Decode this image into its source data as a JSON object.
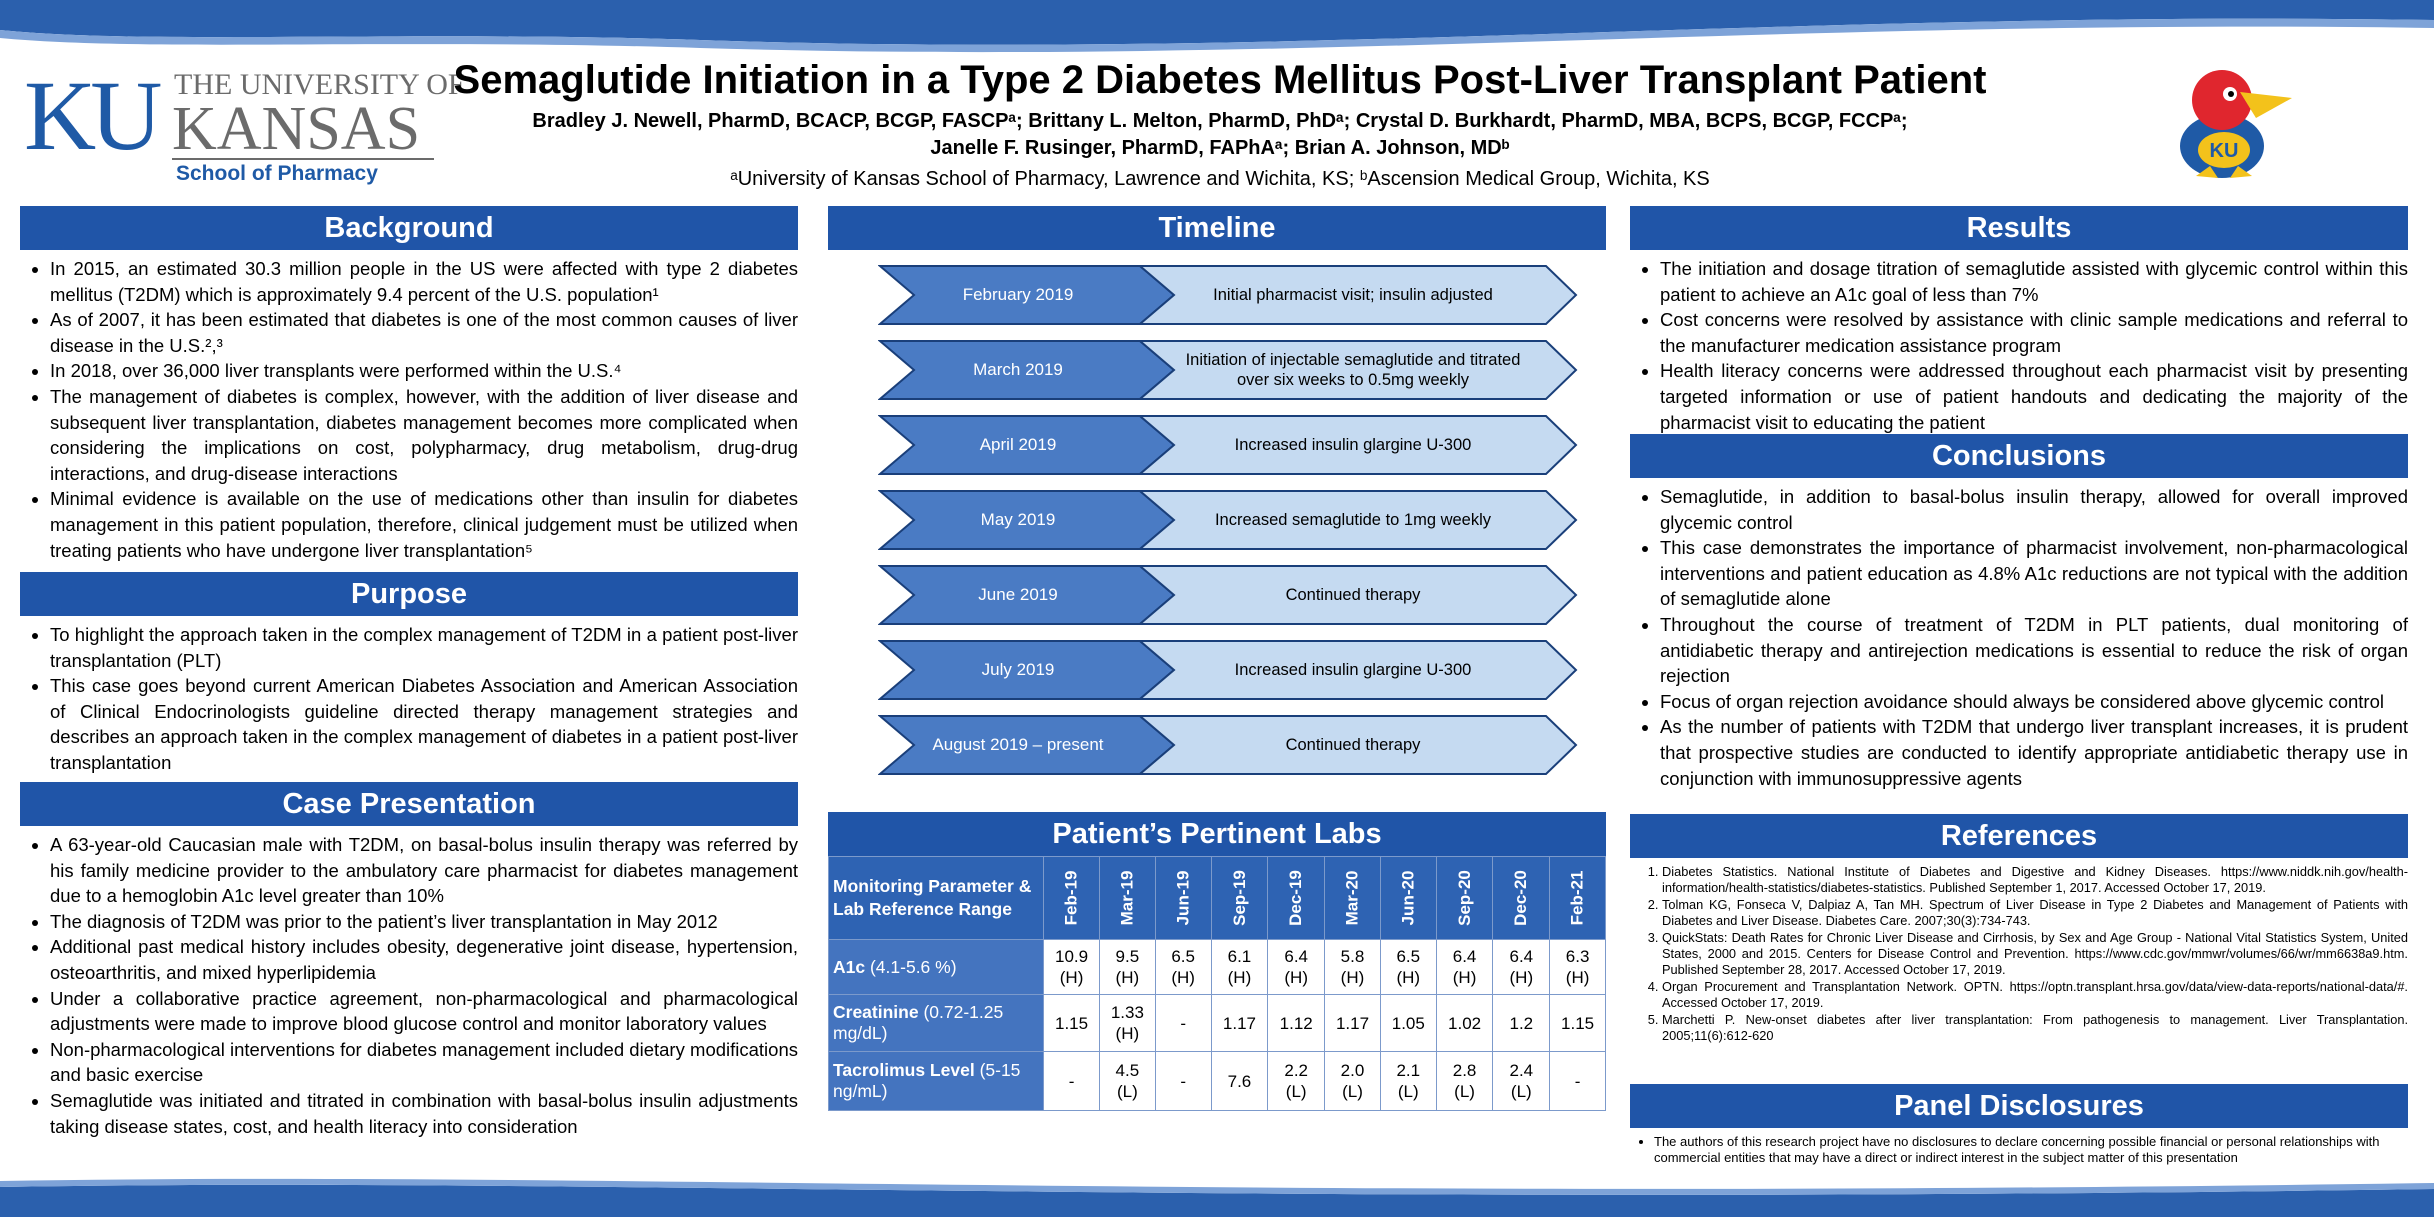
{
  "header": {
    "logo": {
      "ku": "KU",
      "university": "THE UNIVERSITY OF",
      "kansas": "KANSAS",
      "school": "School of Pharmacy"
    },
    "title": "Semaglutide Initiation in a Type 2 Diabetes Mellitus Post-Liver Transplant Patient",
    "authors_line1": "Bradley J. Newell, PharmD, BCACP, BCGP, FASCPᵃ; Brittany L. Melton, PharmD, PhDᵃ; Crystal D. Burkhardt, PharmD, MBA, BCPS, BCGP, FCCPᵃ;",
    "authors_line2": "Janelle F. Rusinger, PharmD, FAPhAᵃ; Brian A. Johnson, MDᵇ",
    "affiliations": "ᵃUniversity of Kansas School of Pharmacy, Lawrence and Wichita, KS; ᵇAscension Medical Group, Wichita, KS",
    "mascot_text": "KU"
  },
  "colors": {
    "primary": "#2055a8",
    "timeline_dark": "#4a7bc4",
    "timeline_light": "#c5daf1",
    "wave": "#2b60ad"
  },
  "background": {
    "heading": "Background",
    "bullets": [
      "In 2015, an estimated 30.3 million people in the US were affected with type 2 diabetes mellitus (T2DM) which is approximately 9.4 percent of the U.S. population¹",
      "As of 2007, it has been estimated that diabetes is one of the most common causes of liver disease in the U.S.²,³",
      "In 2018, over 36,000 liver transplants were performed within the U.S.⁴",
      "The management of diabetes is complex, however, with the addition of liver disease and subsequent liver transplantation, diabetes management becomes more complicated when considering the implications on cost, polypharmacy, drug metabolism, drug-drug interactions, and drug-disease interactions",
      "Minimal evidence is available on the use of medications other than insulin for diabetes management in this patient population, therefore, clinical judgement must be utilized when treating patients who have undergone liver transplantation⁵"
    ]
  },
  "purpose": {
    "heading": "Purpose",
    "bullets": [
      "To highlight the approach taken in the complex management of T2DM in a patient post-liver transplantation (PLT)",
      "This case goes beyond current American Diabetes Association and American Association of Clinical Endocrinologists guideline directed therapy management strategies and describes an approach taken in the complex management of diabetes in a patient post-liver transplantation"
    ]
  },
  "case": {
    "heading": "Case Presentation",
    "bullets": [
      "A 63-year-old Caucasian male with T2DM, on basal-bolus insulin therapy was referred by his family medicine provider to the ambulatory care pharmacist for diabetes management due to a hemoglobin A1c level greater than 10%",
      "The diagnosis of T2DM was prior to the patient’s liver transplantation in May 2012",
      "Additional past medical history includes obesity, degenerative joint disease, hypertension, osteoarthritis, and mixed hyperlipidemia",
      "Under a collaborative practice agreement, non-pharmacological and pharmacological adjustments were made to improve blood glucose control and monitor laboratory values",
      "Non-pharmacological interventions for diabetes management included dietary modifications and basic exercise",
      "Semaglutide was initiated and titrated in combination with basal-bolus insulin adjustments taking disease states, cost, and health literacy into consideration"
    ]
  },
  "timeline": {
    "heading": "Timeline",
    "items": [
      {
        "date": "February 2019",
        "event": "Initial pharmacist visit; insulin adjusted"
      },
      {
        "date": "March 2019",
        "event": "Initiation of injectable semaglutide and titrated over six weeks to 0.5mg weekly"
      },
      {
        "date": "April 2019",
        "event": "Increased insulin glargine U-300"
      },
      {
        "date": "May 2019",
        "event": "Increased semaglutide to 1mg weekly"
      },
      {
        "date": "June 2019",
        "event": "Continued therapy"
      },
      {
        "date": "July 2019",
        "event": "Increased insulin glargine U-300"
      },
      {
        "date": "August  2019 – present",
        "event": "Continued therapy"
      }
    ]
  },
  "labs": {
    "heading": "Patient’s Pertinent Labs",
    "corner": "Monitoring Parameter & Lab Reference Range",
    "columns": [
      "Feb-19",
      "Mar-19",
      "Jun-19",
      "Sep-19",
      "Dec-19",
      "Mar-20",
      "Jun-20",
      "Sep-20",
      "Dec-20",
      "Feb-21"
    ],
    "rows": [
      {
        "name": "A1c",
        "range": "(4.1-5.6 %)",
        "values": [
          [
            "10.9",
            "(H)"
          ],
          [
            "9.5",
            "(H)"
          ],
          [
            "6.5",
            "(H)"
          ],
          [
            "6.1",
            "(H)"
          ],
          [
            "6.4",
            "(H)"
          ],
          [
            "5.8",
            "(H)"
          ],
          [
            "6.5",
            "(H)"
          ],
          [
            "6.4",
            "(H)"
          ],
          [
            "6.4",
            "(H)"
          ],
          [
            "6.3",
            "(H)"
          ]
        ]
      },
      {
        "name": "Creatinine",
        "range": "(0.72-1.25 mg/dL)",
        "values": [
          [
            "1.15",
            ""
          ],
          [
            "1.33",
            "(H)"
          ],
          [
            "-",
            ""
          ],
          [
            "1.17",
            ""
          ],
          [
            "1.12",
            ""
          ],
          [
            "1.17",
            ""
          ],
          [
            "1.05",
            ""
          ],
          [
            "1.02",
            ""
          ],
          [
            "1.2",
            ""
          ],
          [
            "1.15",
            ""
          ]
        ]
      },
      {
        "name": "Tacrolimus Level",
        "range": "(5-15 ng/mL)",
        "values": [
          [
            "-",
            ""
          ],
          [
            "4.5",
            "(L)"
          ],
          [
            "-",
            ""
          ],
          [
            "7.6",
            ""
          ],
          [
            "2.2",
            "(L)"
          ],
          [
            "2.0",
            "(L)"
          ],
          [
            "2.1",
            "(L)"
          ],
          [
            "2.8",
            "(L)"
          ],
          [
            "2.4",
            "(L)"
          ],
          [
            "-",
            ""
          ]
        ]
      }
    ]
  },
  "results": {
    "heading": "Results",
    "bullets": [
      "The initiation and dosage titration of semaglutide assisted with glycemic control within this patient to achieve an A1c goal of less than 7%",
      "Cost concerns were resolved by assistance with clinic sample medications and referral to the manufacturer medication assistance program",
      "Health literacy concerns were addressed throughout each pharmacist visit by presenting targeted information or use of patient handouts and dedicating the majority of the pharmacist visit to educating the patient"
    ]
  },
  "conclusions": {
    "heading": "Conclusions",
    "bullets": [
      "Semaglutide, in addition to basal-bolus insulin therapy, allowed for overall improved glycemic control",
      "This case demonstrates the importance of pharmacist involvement, non-pharmacological interventions and patient education as 4.8% A1c reductions are not typical with the addition of semaglutide alone",
      "Throughout the course of treatment of T2DM in PLT patients, dual monitoring of antidiabetic therapy and antirejection medications is essential to reduce the risk of organ rejection",
      "Focus of organ rejection avoidance should always be considered above glycemic control",
      "As the number of patients with T2DM that undergo liver transplant increases, it is prudent that prospective studies are conducted to identify appropriate antidiabetic therapy use in conjunction with immunosuppressive agents"
    ]
  },
  "references": {
    "heading": "References",
    "items": [
      "Diabetes Statistics. National Institute of Diabetes and Digestive and Kidney Diseases. https://www.niddk.nih.gov/health-information/health-statistics/diabetes-statistics. Published September 1, 2017. Accessed October 17, 2019.",
      "Tolman KG, Fonseca V, Dalpiaz A, Tan MH. Spectrum of Liver Disease in Type 2 Diabetes and Management of Patients with Diabetes and Liver Disease. Diabetes Care. 2007;30(3):734-743.",
      "QuickStats: Death Rates for Chronic Liver Disease and Cirrhosis, by Sex and Age Group - National Vital Statistics System, United States, 2000 and 2015. Centers for Disease Control and Prevention. https://www.cdc.gov/mmwr/volumes/66/wr/mm6638a9.htm. Published September 28, 2017. Accessed October 17, 2019.",
      "Organ Procurement and Transplantation Network. OPTN. https://optn.transplant.hrsa.gov/data/view-data-reports/national-data/#. Accessed October 17, 2019.",
      "Marchetti P. New-onset diabetes after liver transplantation: From pathogenesis to management. Liver Transplantation. 2005;11(6):612-620"
    ]
  },
  "disclosures": {
    "heading": "Panel Disclosures",
    "text": "The authors of this research project have no disclosures to declare concerning possible financial or personal relationships with commercial entities that may have a direct or indirect interest in the subject matter of this presentation"
  }
}
